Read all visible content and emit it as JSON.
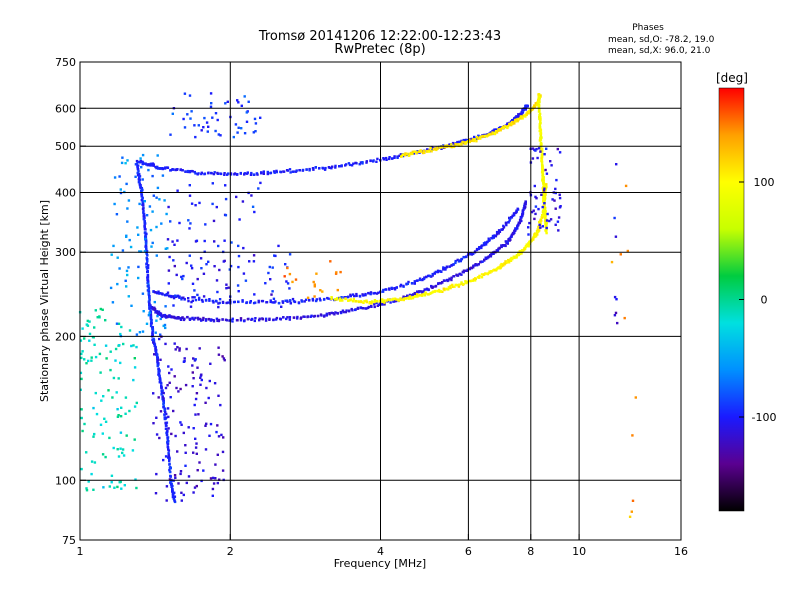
{
  "chart_data": {
    "type": "scatter",
    "title": "Tromsø 20141206 12:22:00-12:23:43",
    "subtitle": "RwPretec (8p)",
    "phase_info": {
      "title": "Phases",
      "line_o": "mean, sd,O: -78.2, 19.0",
      "line_x": "mean, sd,X:  96.0, 21.0"
    },
    "xlabel": "Frequency [MHz]",
    "ylabel": "Stationary phase Virtual Height [km]",
    "x_scale": "log",
    "y_scale": "log",
    "xlim": [
      1,
      16
    ],
    "ylim": [
      75,
      750
    ],
    "x_ticks": [
      {
        "value": 1,
        "label": "1"
      },
      {
        "value": 2,
        "label": "2"
      },
      {
        "value": 4,
        "label": "4"
      },
      {
        "value": 6,
        "label": "6"
      },
      {
        "value": 8,
        "label": "8"
      },
      {
        "value": 10,
        "label": "10"
      },
      {
        "value": 16,
        "label": "16"
      }
    ],
    "x_gridlines": [
      2,
      4,
      6,
      8,
      10
    ],
    "y_ticks": [
      {
        "value": 75,
        "label": "75"
      },
      {
        "value": 100,
        "label": "100"
      },
      {
        "value": 200,
        "label": "200"
      },
      {
        "value": 300,
        "label": "300"
      },
      {
        "value": 400,
        "label": "400"
      },
      {
        "value": 500,
        "label": "500"
      },
      {
        "value": 600,
        "label": "600"
      },
      {
        "value": 750,
        "label": "750"
      }
    ],
    "y_gridlines": [
      100,
      200,
      300,
      400,
      500,
      600
    ],
    "grid": true,
    "colorbar": {
      "label": "[deg]",
      "range": [
        -180,
        180
      ],
      "ticks": [
        {
          "value": 100,
          "label": "100"
        },
        {
          "value": 0,
          "label": "0"
        },
        {
          "value": -100,
          "label": "-100"
        }
      ],
      "colors": [
        "#000000",
        "#5a0090",
        "#1a1aff",
        "#0090ff",
        "#00e0e0",
        "#00cc40",
        "#c8ff00",
        "#ffff00",
        "#ffa000",
        "#ff0000"
      ]
    },
    "traces": [
      {
        "mode": "O",
        "layer": "F2",
        "phase_deg": -110,
        "points": [
          [
            1.38,
            232
          ],
          [
            1.45,
            222
          ],
          [
            1.6,
            218
          ],
          [
            1.9,
            216
          ],
          [
            2.4,
            217
          ],
          [
            3.0,
            221
          ],
          [
            3.6,
            228
          ],
          [
            4.3,
            238
          ],
          [
            5.0,
            252
          ],
          [
            5.8,
            270
          ],
          [
            6.5,
            290
          ],
          [
            7.2,
            315
          ],
          [
            7.6,
            345
          ],
          [
            7.85,
            385
          ]
        ]
      },
      {
        "mode": "O",
        "layer": "F2-trace2",
        "phase_deg": -100,
        "points": [
          [
            1.4,
            248
          ],
          [
            1.6,
            240
          ],
          [
            2.0,
            236
          ],
          [
            2.6,
            236
          ],
          [
            3.3,
            240
          ],
          [
            4.0,
            248
          ],
          [
            4.8,
            262
          ],
          [
            5.5,
            280
          ],
          [
            6.3,
            305
          ],
          [
            7.0,
            335
          ],
          [
            7.6,
            372
          ]
        ]
      },
      {
        "mode": "X",
        "layer": "F2",
        "phase_deg": 100,
        "points": [
          [
            3.2,
            240
          ],
          [
            3.8,
            236
          ],
          [
            4.5,
            240
          ],
          [
            5.2,
            248
          ],
          [
            6.0,
            260
          ],
          [
            6.8,
            276
          ],
          [
            7.4,
            292
          ],
          [
            7.9,
            310
          ],
          [
            8.25,
            330
          ],
          [
            8.45,
            360
          ],
          [
            8.6,
            420
          ]
        ]
      },
      {
        "mode": "O",
        "layer": "F-upper",
        "phase_deg": -100,
        "points": [
          [
            1.3,
            465
          ],
          [
            1.45,
            450
          ],
          [
            1.7,
            440
          ],
          [
            2.1,
            438
          ],
          [
            2.6,
            442
          ],
          [
            3.2,
            452
          ],
          [
            4.0,
            468
          ],
          [
            4.8,
            486
          ],
          [
            5.6,
            505
          ],
          [
            6.4,
            525
          ],
          [
            7.1,
            550
          ],
          [
            7.6,
            580
          ],
          [
            7.9,
            610
          ]
        ]
      },
      {
        "mode": "X",
        "layer": "F-upper",
        "phase_deg": 110,
        "points": [
          [
            4.4,
            478
          ],
          [
            5.0,
            490
          ],
          [
            5.8,
            505
          ],
          [
            6.5,
            525
          ],
          [
            7.2,
            550
          ],
          [
            7.8,
            580
          ],
          [
            8.2,
            610
          ],
          [
            8.4,
            640
          ]
        ]
      },
      {
        "mode": "O",
        "layer": "E-spread",
        "phase_deg": -95,
        "points": [
          [
            1.3,
            460
          ],
          [
            1.33,
            400
          ],
          [
            1.35,
            340
          ],
          [
            1.36,
            300
          ],
          [
            1.37,
            260
          ],
          [
            1.38,
            230
          ],
          [
            1.4,
            200
          ],
          [
            1.43,
            180
          ],
          [
            1.45,
            160
          ],
          [
            1.48,
            140
          ],
          [
            1.5,
            120
          ],
          [
            1.52,
            100
          ],
          [
            1.55,
            90
          ]
        ]
      },
      {
        "mode": "X",
        "layer": "cusp",
        "phase_deg": 95,
        "points": [
          [
            8.3,
            640
          ],
          [
            8.35,
            560
          ],
          [
            8.4,
            500
          ],
          [
            8.45,
            440
          ],
          [
            8.5,
            400
          ],
          [
            8.55,
            360
          ],
          [
            8.6,
            330
          ]
        ]
      }
    ],
    "scatter_clouds": [
      {
        "x_range": [
          1.0,
          1.3
        ],
        "y_range": [
          95,
          230
        ],
        "phase_deg": -10,
        "count": 120
      },
      {
        "x_range": [
          1.15,
          1.5
        ],
        "y_range": [
          200,
          480
        ],
        "phase_deg": -60,
        "count": 90
      },
      {
        "x_range": [
          1.4,
          1.95
        ],
        "y_range": [
          90,
          200
        ],
        "phase_deg": -115,
        "count": 140
      },
      {
        "x_range": [
          1.5,
          2.7
        ],
        "y_range": [
          230,
          320
        ],
        "phase_deg": -100,
        "count": 90
      },
      {
        "x_range": [
          1.5,
          2.3
        ],
        "y_range": [
          520,
          650
        ],
        "phase_deg": -90,
        "count": 50
      },
      {
        "x_range": [
          1.5,
          2.3
        ],
        "y_range": [
          330,
          420
        ],
        "phase_deg": -95,
        "count": 30
      },
      {
        "x_range": [
          7.9,
          9.2
        ],
        "y_range": [
          320,
          500
        ],
        "phase_deg": -110,
        "count": 60
      },
      {
        "x_range": [
          2.5,
          3.4
        ],
        "y_range": [
          240,
          290
        ],
        "phase_deg": 150,
        "count": 18
      },
      {
        "x_range": [
          11.7,
          12.0
        ],
        "y_range": [
          200,
          500
        ],
        "phase_deg": -110,
        "count": 8
      },
      {
        "x_range": [
          11.6,
          13.2
        ],
        "y_range": [
          82,
          640
        ],
        "phase_deg": 140,
        "count": 10
      }
    ]
  }
}
